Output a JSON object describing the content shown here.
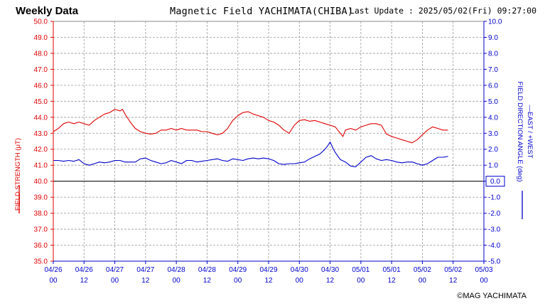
{
  "header": {
    "left_title": "Weekly Data",
    "chart_title": "Magnetic Field YACHIMATA(CHIBA)",
    "last_update": "Last Update : 2025/05/02(Fri) 09:27:00"
  },
  "footer": {
    "copyright": "©MAG YACHIMATA"
  },
  "colors": {
    "strength": "#e00000",
    "angle": "#0000cc",
    "grid": "#999999",
    "zero_line": "#000000"
  },
  "chart_data": {
    "type": "line",
    "title": "Magnetic Field YACHIMATA(CHIBA)",
    "grid": true,
    "x": {
      "unit": "hours since 04/26 00:00",
      "range": [
        0,
        168
      ],
      "ticks": [
        {
          "value": 0,
          "date": "04/26",
          "hour": "00"
        },
        {
          "value": 12,
          "date": "04/26",
          "hour": "12"
        },
        {
          "value": 24,
          "date": "04/27",
          "hour": "00"
        },
        {
          "value": 36,
          "date": "04/27",
          "hour": "12"
        },
        {
          "value": 48,
          "date": "04/28",
          "hour": "00"
        },
        {
          "value": 60,
          "date": "04/28",
          "hour": "12"
        },
        {
          "value": 72,
          "date": "04/29",
          "hour": "00"
        },
        {
          "value": 84,
          "date": "04/29",
          "hour": "12"
        },
        {
          "value": 96,
          "date": "04/30",
          "hour": "00"
        },
        {
          "value": 108,
          "date": "04/30",
          "hour": "12"
        },
        {
          "value": 120,
          "date": "05/01",
          "hour": "00"
        },
        {
          "value": 132,
          "date": "05/01",
          "hour": "12"
        },
        {
          "value": 144,
          "date": "05/02",
          "hour": "00"
        },
        {
          "value": 156,
          "date": "05/02",
          "hour": "12"
        },
        {
          "value": 168,
          "date": "05/03",
          "hour": "00"
        }
      ]
    },
    "y_left": {
      "label": "FIELD STRENGTH (μT)",
      "range": [
        35,
        50
      ],
      "ticks": [
        "50.0",
        "49.0",
        "48.0",
        "47.0",
        "46.0",
        "45.0",
        "44.0",
        "43.0",
        "42.0",
        "41.0",
        "40.0",
        "39.0",
        "38.0",
        "37.0",
        "36.0",
        "35.0"
      ]
    },
    "y_right": {
      "label_1": "FIELD DIRECTION ANGLE (deg)",
      "label_2": "—EAST / +WEST",
      "range": [
        -5,
        10
      ],
      "ticks": [
        "10.0",
        "9.0",
        "8.0",
        "7.0",
        "6.0",
        "5.0",
        "4.0",
        "3.0",
        "2.0",
        "1.0",
        "0.0",
        "-1.0",
        "-2.0",
        "-3.0",
        "-4.0",
        "-5.0"
      ],
      "zero_box": "0.0"
    },
    "series": [
      {
        "name": "FIELD STRENGTH",
        "axis": "left",
        "color": "#e00000",
        "x": [
          0,
          2,
          4,
          6,
          8,
          10,
          12,
          14,
          16,
          18,
          20,
          22,
          24,
          26,
          27,
          28,
          30,
          32,
          34,
          36,
          38,
          40,
          42,
          44,
          46,
          48,
          50,
          52,
          54,
          56,
          58,
          60,
          62,
          64,
          66,
          68,
          70,
          72,
          74,
          76,
          78,
          80,
          82,
          84,
          86,
          88,
          90,
          92,
          94,
          96,
          98,
          100,
          102,
          104,
          106,
          108,
          110,
          112,
          113,
          114,
          116,
          118,
          120,
          122,
          124,
          126,
          128,
          130,
          132,
          134,
          136,
          138,
          140,
          142,
          144,
          146,
          148,
          150,
          152,
          154
        ],
        "values": [
          43.1,
          43.3,
          43.6,
          43.7,
          43.6,
          43.7,
          43.6,
          43.5,
          43.8,
          44.0,
          44.2,
          44.3,
          44.5,
          44.4,
          44.5,
          44.2,
          43.7,
          43.3,
          43.1,
          43.0,
          42.95,
          43.0,
          43.2,
          43.2,
          43.3,
          43.2,
          43.3,
          43.2,
          43.2,
          43.2,
          43.1,
          43.1,
          43.0,
          42.9,
          43.0,
          43.3,
          43.8,
          44.1,
          44.3,
          44.35,
          44.2,
          44.1,
          44.0,
          43.8,
          43.7,
          43.5,
          43.2,
          43.0,
          43.5,
          43.8,
          43.85,
          43.75,
          43.8,
          43.7,
          43.6,
          43.5,
          43.4,
          43.0,
          42.8,
          43.2,
          43.3,
          43.2,
          43.4,
          43.5,
          43.6,
          43.6,
          43.5,
          42.95,
          42.8,
          42.7,
          42.6,
          42.5,
          42.4,
          42.6,
          42.9,
          43.2,
          43.4,
          43.3,
          43.2,
          43.2
        ]
      },
      {
        "name": "FIELD DIRECTION ANGLE",
        "axis": "right",
        "color": "#0000cc",
        "x": [
          0,
          2,
          4,
          6,
          8,
          10,
          12,
          14,
          16,
          18,
          20,
          22,
          24,
          26,
          28,
          30,
          32,
          34,
          36,
          38,
          40,
          42,
          44,
          46,
          48,
          50,
          52,
          54,
          56,
          58,
          60,
          62,
          64,
          66,
          68,
          70,
          72,
          74,
          76,
          78,
          80,
          82,
          84,
          86,
          88,
          90,
          92,
          94,
          96,
          98,
          100,
          102,
          104,
          106,
          107,
          108,
          109,
          110,
          112,
          114,
          116,
          118,
          120,
          122,
          124,
          126,
          128,
          130,
          132,
          134,
          136,
          138,
          140,
          142,
          144,
          146,
          148,
          150,
          152,
          154
        ],
        "values": [
          1.3,
          1.3,
          1.25,
          1.3,
          1.25,
          1.35,
          1.1,
          1.0,
          1.1,
          1.2,
          1.15,
          1.2,
          1.3,
          1.3,
          1.2,
          1.2,
          1.2,
          1.4,
          1.45,
          1.3,
          1.2,
          1.1,
          1.15,
          1.3,
          1.2,
          1.1,
          1.3,
          1.3,
          1.2,
          1.25,
          1.3,
          1.35,
          1.4,
          1.3,
          1.25,
          1.4,
          1.35,
          1.3,
          1.4,
          1.45,
          1.4,
          1.45,
          1.4,
          1.3,
          1.1,
          1.05,
          1.1,
          1.1,
          1.15,
          1.2,
          1.4,
          1.55,
          1.7,
          2.0,
          2.2,
          2.45,
          2.1,
          1.8,
          1.35,
          1.2,
          0.95,
          0.9,
          1.2,
          1.5,
          1.6,
          1.4,
          1.3,
          1.35,
          1.3,
          1.2,
          1.15,
          1.2,
          1.2,
          1.1,
          1.0,
          1.1,
          1.3,
          1.5,
          1.5,
          1.55
        ]
      }
    ]
  }
}
